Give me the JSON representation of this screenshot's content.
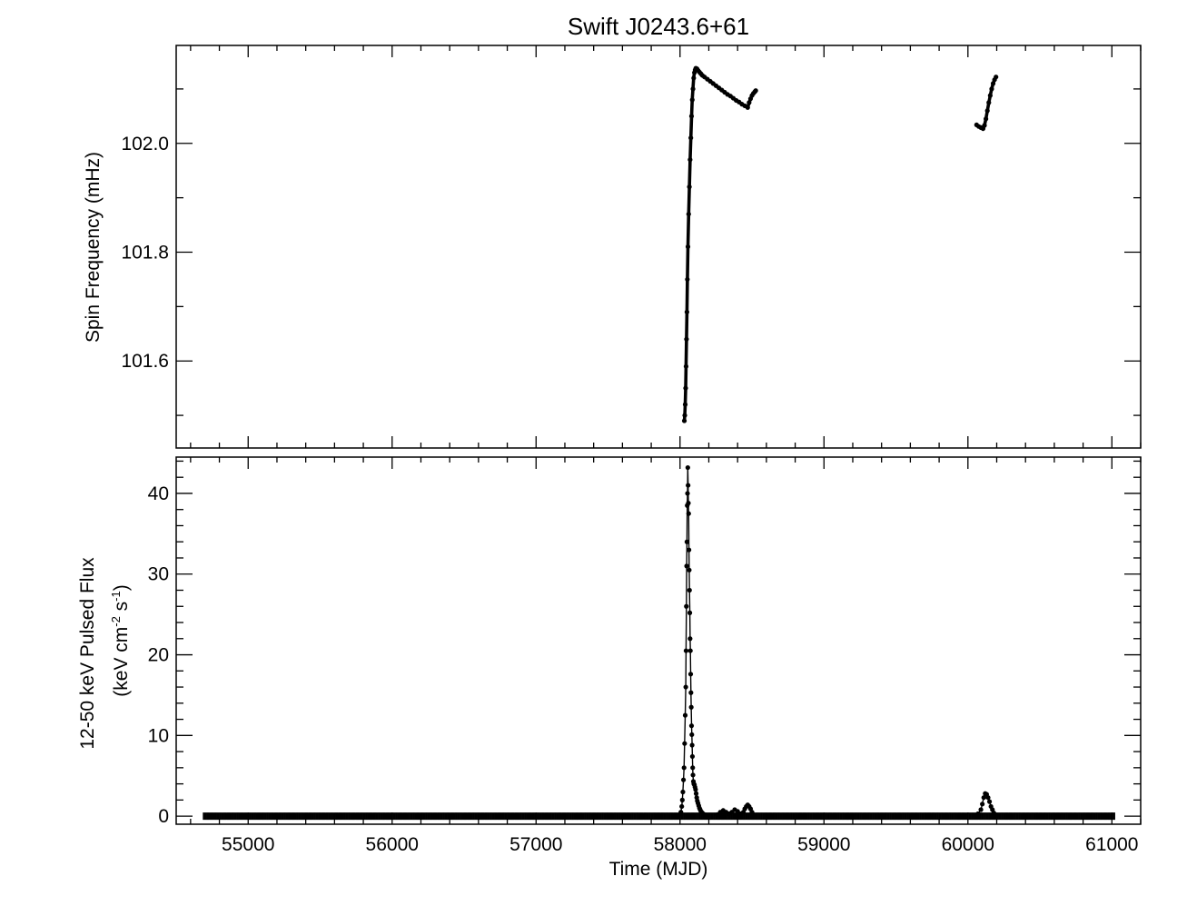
{
  "figure": {
    "title": "Swift J0243.6+61",
    "xlabel": "Time (MJD)"
  },
  "chart_data": [
    {
      "type": "scatter",
      "panel": "top",
      "title": "Swift J0243.6+61",
      "ylabel": "Spin Frequency (mHz)",
      "xlim": [
        54500,
        61200
      ],
      "ylim": [
        101.44,
        102.18
      ],
      "x_ticks": [
        55000,
        56000,
        57000,
        58000,
        59000,
        60000,
        61000
      ],
      "y_ticks": [
        101.6,
        101.8,
        102.0
      ],
      "y_tick_labels": [
        "101.6",
        "101.8",
        "102.0"
      ],
      "grid": false,
      "series": [
        {
          "x": [
            58030,
            58033,
            58036,
            58039,
            58042,
            58045,
            58048,
            58051,
            58055,
            58060,
            58065,
            58070,
            58075,
            58080,
            58085,
            58090,
            58095,
            58100,
            58105,
            58110,
            58118,
            58126,
            58135,
            58145,
            58155,
            58170,
            58190,
            58210,
            58230,
            58250,
            58270,
            58290,
            58310,
            58330,
            58350,
            58370,
            58390,
            58410,
            58430,
            58450,
            58470,
            58480,
            58490,
            58500,
            58510,
            58520,
            58526
          ],
          "y": [
            101.49,
            101.5,
            101.52,
            101.55,
            101.59,
            101.64,
            101.69,
            101.75,
            101.81,
            101.87,
            101.92,
            101.97,
            102.01,
            102.05,
            102.08,
            102.1,
            102.12,
            102.13,
            102.135,
            102.138,
            102.137,
            102.134,
            102.131,
            102.128,
            102.125,
            102.122,
            102.118,
            102.114,
            102.11,
            102.106,
            102.102,
            102.098,
            102.094,
            102.09,
            102.087,
            102.083,
            102.079,
            102.076,
            102.072,
            102.069,
            102.066,
            102.075,
            102.082,
            102.088,
            102.092,
            102.095,
            102.097
          ]
        },
        {
          "x": [
            60060,
            60075,
            60090,
            60105,
            60115,
            60125,
            60135,
            60145,
            60155,
            60165,
            60175,
            60185,
            60195
          ],
          "y": [
            102.034,
            102.031,
            102.029,
            102.027,
            102.033,
            102.045,
            102.06,
            102.075,
            102.088,
            102.1,
            102.11,
            102.117,
            102.122
          ]
        }
      ]
    },
    {
      "type": "scatter",
      "panel": "bottom",
      "ylabel_line1": "12-50 keV Pulsed Flux",
      "ylabel_line2": "(keV cm",
      "ylabel_sup1": "-2",
      "ylabel_mid": " s",
      "ylabel_sup2": "-1",
      "ylabel_end": ")",
      "xlabel": "Time (MJD)",
      "xlim": [
        54500,
        61200
      ],
      "ylim": [
        -1,
        44.5
      ],
      "x_ticks": [
        55000,
        56000,
        57000,
        58000,
        59000,
        60000,
        61000
      ],
      "x_tick_labels": [
        "55000",
        "56000",
        "57000",
        "58000",
        "59000",
        "60000",
        "61000"
      ],
      "y_ticks": [
        0,
        10,
        20,
        30,
        40
      ],
      "y_tick_labels": [
        "0",
        "10",
        "20",
        "30",
        "40"
      ],
      "grid": false,
      "baseline": {
        "x_range": [
          54690,
          61020
        ],
        "y": 0.0
      },
      "series": [
        {
          "x": [
            58000,
            58006,
            58012,
            58016,
            58020,
            58024,
            58028,
            58032,
            58036,
            58040,
            58042,
            58044,
            58046,
            58048,
            58050,
            58052,
            58054,
            58056,
            58058,
            58060,
            58062,
            58064,
            58066,
            58068,
            58070,
            58072,
            58074,
            58076,
            58078,
            58080,
            58082,
            58084,
            58086,
            58088,
            58090,
            58093,
            58096,
            58100,
            58104,
            58108,
            58112,
            58116,
            58120,
            58125,
            58130,
            58135,
            58140,
            58145,
            58150,
            58155,
            58160,
            58170,
            58180
          ],
          "y": [
            0.2,
            0.5,
            1.2,
            2.0,
            3.0,
            4.5,
            6.0,
            9.0,
            12.5,
            16.0,
            20.5,
            26.0,
            31.0,
            34.0,
            38.5,
            40.0,
            43.2,
            41.0,
            38.8,
            37.5,
            33.0,
            30.5,
            28.0,
            25.2,
            22.0,
            20.5,
            17.6,
            15.3,
            13.5,
            11.2,
            10.1,
            8.8,
            7.4,
            6.0,
            5.1,
            4.3,
            4.0,
            3.9,
            3.6,
            3.3,
            2.8,
            2.3,
            1.9,
            1.6,
            1.3,
            1.0,
            0.8,
            0.6,
            0.5,
            0.4,
            0.3,
            0.2,
            0.1
          ]
        },
        {
          "x": [
            58260,
            58280,
            58300,
            58320,
            58340,
            58360,
            58380,
            58400,
            58420,
            58440,
            58450,
            58460,
            58470,
            58480,
            58490,
            58500,
            58510,
            58520
          ],
          "y": [
            0.2,
            0.5,
            0.7,
            0.5,
            0.3,
            0.5,
            0.8,
            0.6,
            0.3,
            0.5,
            0.9,
            1.2,
            1.4,
            1.2,
            0.9,
            0.5,
            0.2,
            0.1
          ]
        },
        {
          "x": [
            60050,
            60070,
            60090,
            60100,
            60110,
            60120,
            60130,
            60140,
            60150,
            60160,
            60170,
            60180,
            60190,
            60200
          ],
          "y": [
            0.1,
            0.3,
            0.8,
            1.5,
            2.3,
            2.8,
            2.7,
            2.3,
            1.8,
            1.2,
            0.8,
            0.4,
            0.2,
            0.1
          ]
        }
      ]
    }
  ]
}
